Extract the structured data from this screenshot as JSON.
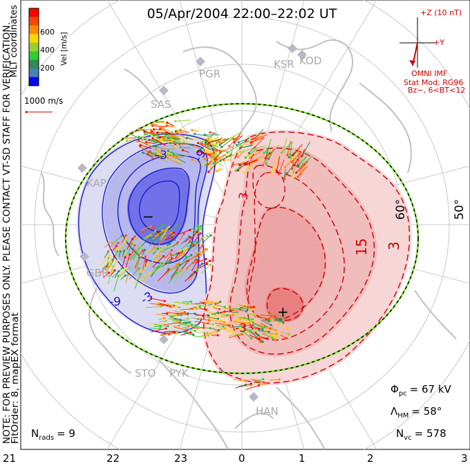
{
  "title": "05/Apr/2004 22:00–22:02 UT",
  "color_scale": {
    "label": "Vel [m/s]",
    "ticks": [
      "600",
      "400",
      "200"
    ],
    "colors": [
      "#ff0000",
      "#ff4500",
      "#ff8c00",
      "#ffd700",
      "#9acd32",
      "#32cd32",
      "#2e8b57",
      "#4682b4",
      "#0000ff"
    ]
  },
  "side_labels": {
    "mlt": "MLT coordinates",
    "notice": "NOTE: FOR PREVIEW PURPOSES ONLY. PLEASE CONTACT VT-SD STAFF FOR VERIFICATION.",
    "fit": "FitOrder: 8, mapEX format"
  },
  "vector_scale": "1000 m/s",
  "imf": {
    "z_label": "+Z (10 nT)",
    "y_label": "+Y",
    "omni": "OMNI IMF",
    "model": "Stat Mod: RG96",
    "condition": "Bz−, 6<BT<12"
  },
  "radars": [
    "PGR",
    "KOD",
    "KSR",
    "SAS",
    "KAP",
    "GBR",
    "STO",
    "PYK",
    "HAN"
  ],
  "latitude_labels": [
    "60°",
    "50°"
  ],
  "contour_labels": [
    "-9",
    "-9",
    "-3",
    "-3",
    "3",
    "15",
    "3",
    "-3"
  ],
  "extrema": {
    "min": "−",
    "max": "+"
  },
  "stats": {
    "phi_symbol": "Φ",
    "phi_sub": "pc",
    "phi_value": "= 67 kV",
    "lambda_symbol": "Λ",
    "lambda_sub": "HM",
    "lambda_value": "= 58°",
    "nvc_symbol": "N",
    "nvc_sub": "vc",
    "nvc_value": "= 578"
  },
  "nrads": {
    "symbol": "N",
    "sub": "rads",
    "value": "= 9"
  },
  "mlt_ticks": [
    "21",
    "22",
    "23",
    "0",
    "1",
    "2",
    "3"
  ],
  "colors": {
    "negative": "#1a1acc",
    "positive": "#cc0000",
    "boundary": "#7fdf2f",
    "coast": "#c0c0c0"
  }
}
